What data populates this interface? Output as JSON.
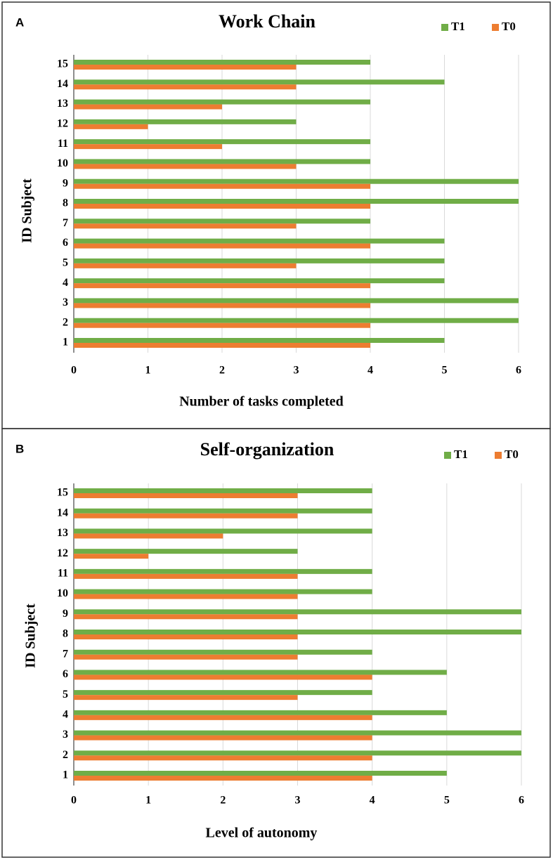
{
  "chart_data": [
    {
      "type": "bar",
      "orientation": "horizontal",
      "panel": "A",
      "title": "Work Chain",
      "x_label": "Number of tasks completed",
      "y_label": "ID Subject",
      "categories": [
        "1",
        "2",
        "3",
        "4",
        "5",
        "6",
        "7",
        "8",
        "9",
        "10",
        "11",
        "12",
        "13",
        "14",
        "15"
      ],
      "series": [
        {
          "name": "T1",
          "color": "#70ad47",
          "values": [
            5,
            6,
            6,
            5,
            5,
            5,
            4,
            6,
            6,
            4,
            4,
            3,
            4,
            5,
            4
          ]
        },
        {
          "name": "T0",
          "color": "#ed7d31",
          "values": [
            4,
            4,
            4,
            4,
            3,
            4,
            3,
            4,
            4,
            3,
            2,
            1,
            2,
            3,
            3
          ]
        }
      ],
      "xlim": [
        0,
        6
      ],
      "xticks": [
        0,
        1,
        2,
        3,
        4,
        5,
        6
      ],
      "grid": true,
      "legend": "top-right"
    },
    {
      "type": "bar",
      "orientation": "horizontal",
      "panel": "B",
      "title": "Self-organization",
      "x_label": "Level of autonomy",
      "y_label": "ID Subject",
      "categories": [
        "1",
        "2",
        "3",
        "4",
        "5",
        "6",
        "7",
        "8",
        "9",
        "10",
        "11",
        "12",
        "13",
        "14",
        "15"
      ],
      "series": [
        {
          "name": "T1",
          "color": "#70ad47",
          "values": [
            5,
            6,
            6,
            5,
            4,
            5,
            4,
            6,
            6,
            4,
            4,
            3,
            4,
            4,
            4
          ]
        },
        {
          "name": "T0",
          "color": "#ed7d31",
          "values": [
            4,
            4,
            4,
            4,
            3,
            4,
            3,
            3,
            3,
            3,
            3,
            1,
            2,
            3,
            3
          ]
        }
      ],
      "xlim": [
        0,
        6
      ],
      "xticks": [
        0,
        1,
        2,
        3,
        4,
        5,
        6
      ],
      "grid": true,
      "legend": "top-right"
    }
  ]
}
